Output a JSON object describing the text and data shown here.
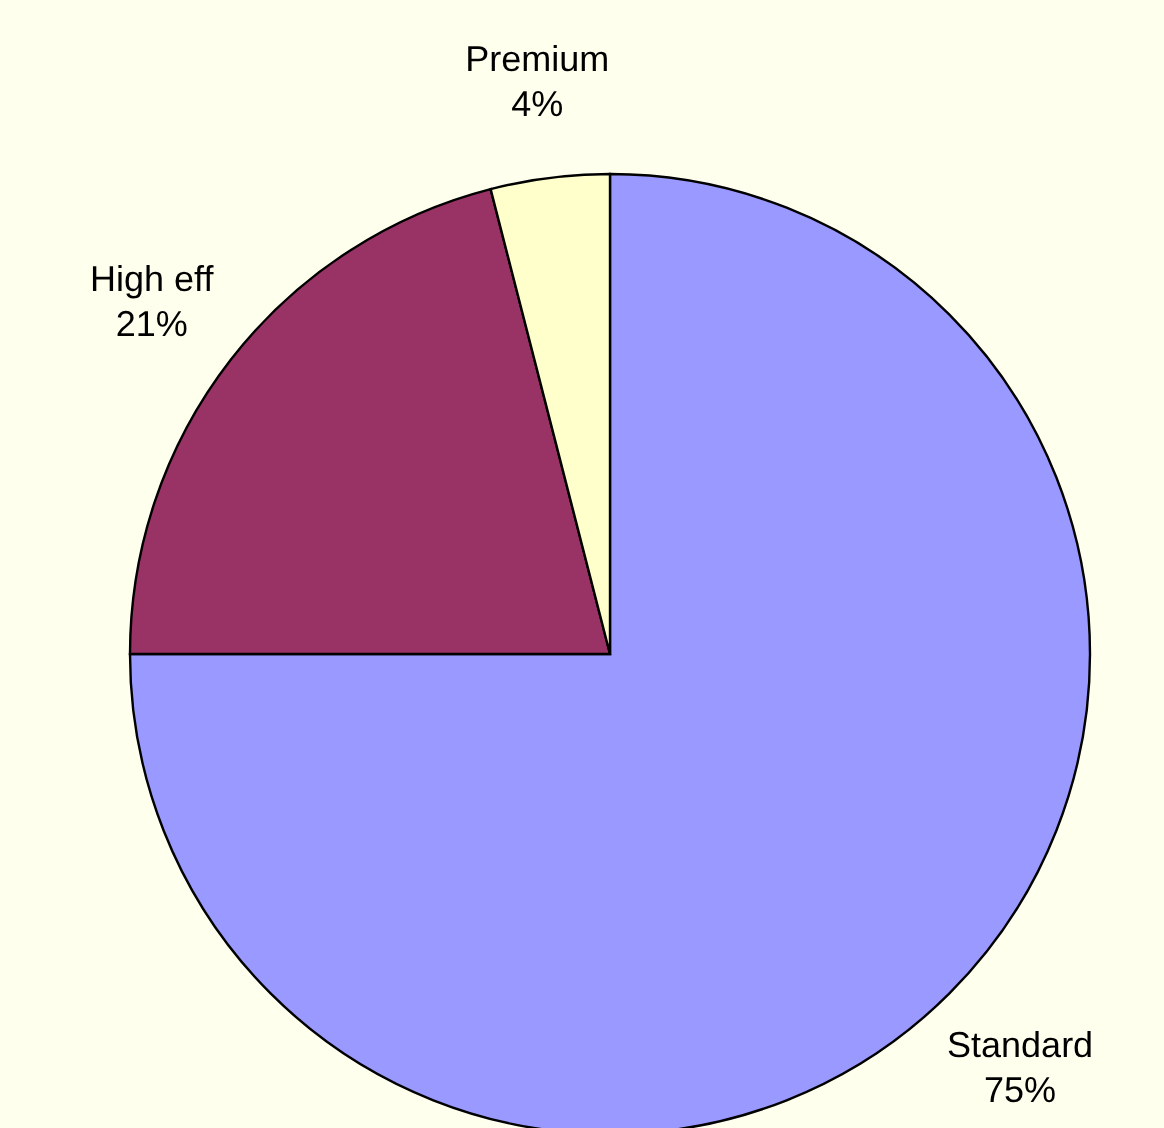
{
  "chart_data": {
    "type": "pie",
    "categories": [
      "Standard",
      "High eff",
      "Premium"
    ],
    "values": [
      75,
      21,
      4
    ],
    "colors": [
      "#9999ff",
      "#993366",
      "#ffffcc"
    ],
    "value_labels": [
      "75%",
      "21%",
      "4%"
    ]
  }
}
